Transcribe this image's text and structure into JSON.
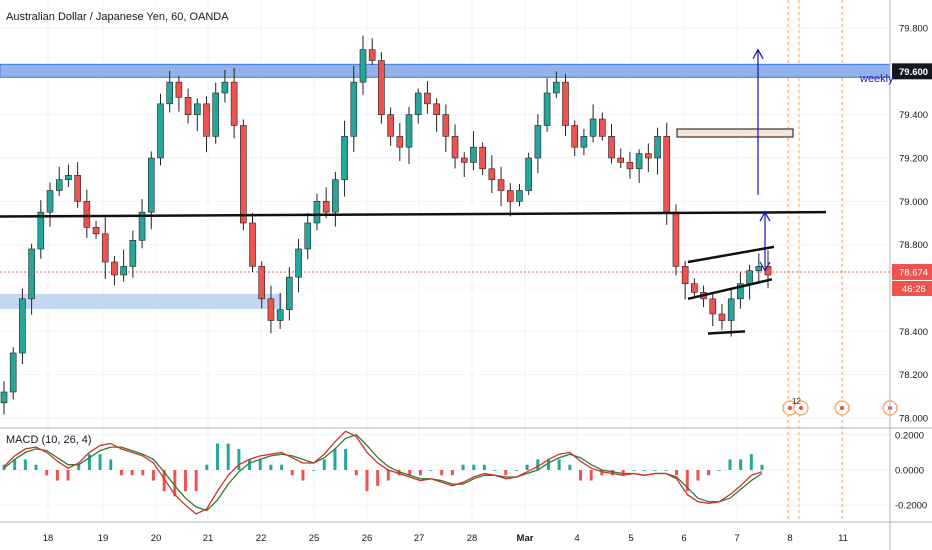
{
  "chart_data": [
    {
      "type": "candlestick",
      "title": "Australian Dollar / Japanese Yen, 60, OANDA",
      "x_ticks": [
        "18",
        "19",
        "20",
        "21",
        "22",
        "25",
        "26",
        "27",
        "28",
        "Mar",
        "4",
        "5",
        "6",
        "7",
        "8",
        "11"
      ],
      "y_ticks": [
        "79.800",
        "79.600",
        "79.400",
        "79.200",
        "79.000",
        "78.800",
        "78.600",
        "78.400",
        "78.200",
        "78.000"
      ],
      "ylim": [
        78.0,
        79.85
      ],
      "last_price_label": "78.674",
      "countdown_label": "46:26",
      "resistance_label_value": "79.600",
      "annotation_text": "weekly",
      "event_marker_label": "12",
      "accent_colors": {
        "up": "#26a69a",
        "down": "#ef5350",
        "zone": "#8fb3ea",
        "zone_border": "#3f7be0",
        "arrow": "#1515b8",
        "box": "#f5e6d5"
      },
      "candles_approx_close": [
        78.12,
        78.3,
        78.55,
        78.78,
        78.95,
        79.05,
        79.1,
        79.12,
        79.0,
        78.88,
        78.85,
        78.72,
        78.66,
        78.7,
        78.82,
        78.95,
        79.2,
        79.45,
        79.55,
        79.48,
        79.4,
        79.45,
        79.3,
        79.5,
        79.55,
        79.35,
        78.9,
        78.7,
        78.55,
        78.45,
        78.5,
        78.65,
        78.78,
        78.9,
        79.0,
        78.95,
        79.1,
        79.3,
        79.55,
        79.7,
        79.65,
        79.4,
        79.3,
        79.25,
        79.4,
        79.5,
        79.45,
        79.4,
        79.3,
        79.2,
        79.18,
        79.25,
        79.15,
        79.1,
        79.05,
        79.0,
        79.05,
        79.2,
        79.35,
        79.5,
        79.55,
        79.35,
        79.25,
        79.3,
        79.38,
        79.3,
        79.2,
        79.18,
        79.15,
        79.22,
        79.2,
        79.3,
        78.95,
        78.7,
        78.62,
        78.58,
        78.55,
        78.48,
        78.45,
        78.55,
        78.62,
        78.68,
        78.7,
        78.66
      ]
    },
    {
      "type": "line",
      "title": "MACD (10, 26, 4)",
      "y_ticks": [
        "0.2000",
        "0.0000",
        "-0.2000"
      ],
      "ylim": [
        -0.28,
        0.22
      ],
      "series": [
        {
          "values": [
            0.02,
            0.08,
            0.12,
            0.13,
            0.1,
            0.05,
            0.01,
            0.04,
            0.1,
            0.14,
            0.15,
            0.12,
            0.1,
            0.08,
            0.04,
            -0.05,
            -0.14,
            -0.2,
            -0.25,
            -0.22,
            -0.12,
            -0.03,
            0.03,
            0.06,
            0.08,
            0.09,
            0.1,
            0.07,
            0.04,
            0.04,
            0.09,
            0.16,
            0.22,
            0.19,
            0.1,
            0.04,
            0.0,
            -0.02,
            -0.04,
            -0.06,
            -0.05,
            -0.07,
            -0.09,
            -0.07,
            -0.04,
            -0.02,
            -0.03,
            -0.05,
            -0.04,
            -0.01,
            0.02,
            0.06,
            0.09,
            0.1,
            0.05,
            0.01,
            -0.01,
            -0.02,
            -0.03,
            -0.02,
            -0.03,
            -0.02,
            -0.02,
            -0.05,
            -0.14,
            -0.18,
            -0.19,
            -0.18,
            -0.14,
            -0.09,
            -0.03,
            -0.01
          ]
        },
        {
          "values": [
            0.01,
            0.06,
            0.1,
            0.12,
            0.11,
            0.07,
            0.03,
            0.03,
            0.07,
            0.11,
            0.13,
            0.13,
            0.11,
            0.09,
            0.06,
            -0.01,
            -0.09,
            -0.16,
            -0.21,
            -0.23,
            -0.17,
            -0.08,
            -0.01,
            0.04,
            0.06,
            0.08,
            0.09,
            0.08,
            0.06,
            0.04,
            0.07,
            0.12,
            0.18,
            0.2,
            0.14,
            0.07,
            0.02,
            -0.01,
            -0.03,
            -0.05,
            -0.05,
            -0.06,
            -0.08,
            -0.08,
            -0.05,
            -0.03,
            -0.03,
            -0.04,
            -0.04,
            -0.02,
            0.0,
            0.04,
            0.07,
            0.09,
            0.07,
            0.03,
            0.0,
            -0.01,
            -0.02,
            -0.02,
            -0.03,
            -0.02,
            -0.02,
            -0.04,
            -0.1,
            -0.16,
            -0.18,
            -0.18,
            -0.16,
            -0.11,
            -0.06,
            -0.02
          ]
        }
      ]
    }
  ]
}
